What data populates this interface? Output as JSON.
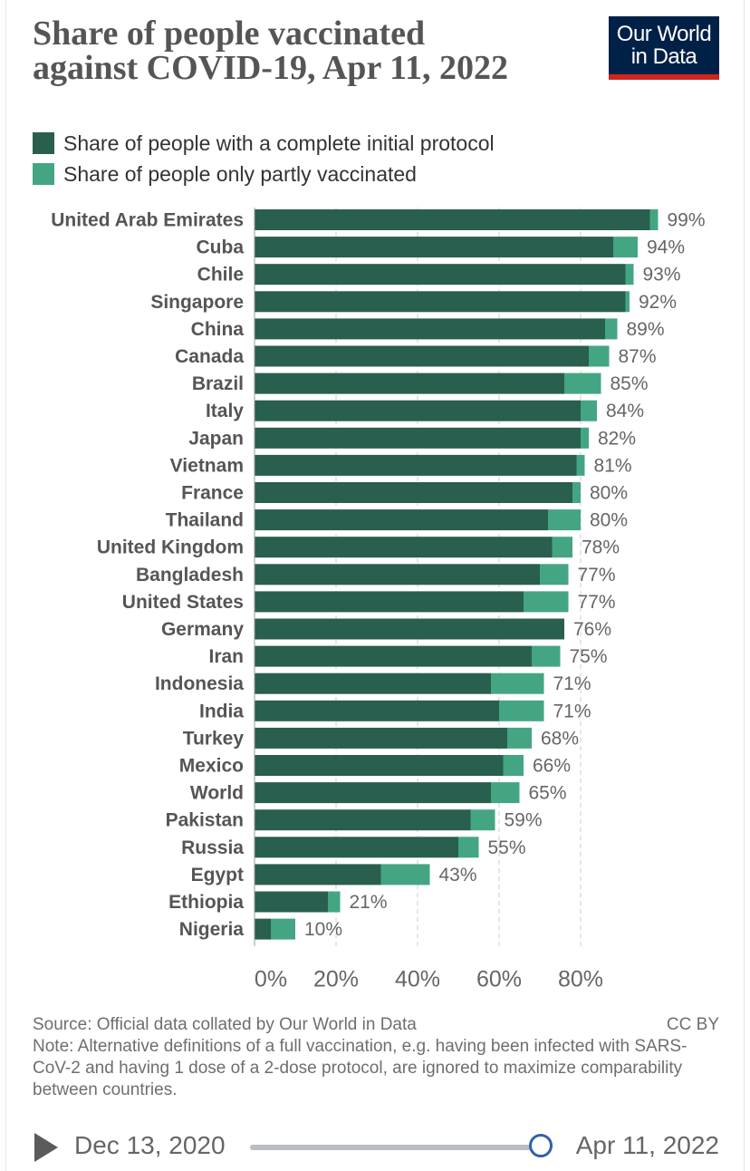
{
  "header": {
    "title_line1": "Share of people vaccinated",
    "title_line2": "against COVID-19, Apr 11, 2022",
    "logo_line1": "Our World",
    "logo_line2": "in Data"
  },
  "legend": [
    {
      "label": "Share of people with a complete initial protocol",
      "color": "#285f4e"
    },
    {
      "label": "Share of people only partly vaccinated",
      "color": "#44a583"
    }
  ],
  "chart_data": {
    "type": "bar",
    "orientation": "horizontal",
    "stacked": true,
    "title": "Share of people vaccinated against COVID-19, Apr 11, 2022",
    "categories": [
      "United Arab Emirates",
      "Cuba",
      "Chile",
      "Singapore",
      "China",
      "Canada",
      "Brazil",
      "Italy",
      "Japan",
      "Vietnam",
      "France",
      "Thailand",
      "United Kingdom",
      "Bangladesh",
      "United States",
      "Germany",
      "Iran",
      "Indonesia",
      "India",
      "Turkey",
      "Mexico",
      "World",
      "Pakistan",
      "Russia",
      "Egypt",
      "Ethiopia",
      "Nigeria"
    ],
    "series": [
      {
        "name": "Share of people with a complete initial protocol",
        "color": "#285f4e",
        "values": [
          97,
          88,
          91,
          91,
          86,
          82,
          76,
          80,
          80,
          79,
          78,
          72,
          73,
          70,
          66,
          76,
          68,
          58,
          60,
          62,
          61,
          58,
          53,
          50,
          31,
          18,
          4
        ]
      },
      {
        "name": "Share of people only partly vaccinated",
        "color": "#44a583",
        "values": [
          2,
          6,
          2,
          1,
          3,
          5,
          9,
          4,
          2,
          2,
          2,
          8,
          5,
          7,
          11,
          0,
          7,
          13,
          11,
          6,
          5,
          7,
          6,
          5,
          12,
          3,
          6
        ]
      }
    ],
    "data_labels": [
      "99%",
      "94%",
      "93%",
      "92%",
      "89%",
      "87%",
      "85%",
      "84%",
      "82%",
      "81%",
      "80%",
      "80%",
      "78%",
      "77%",
      "77%",
      "76%",
      "75%",
      "71%",
      "71%",
      "68%",
      "66%",
      "65%",
      "59%",
      "55%",
      "43%",
      "21%",
      "10%"
    ],
    "xlim": [
      0,
      100
    ],
    "x_ticks": [
      0,
      20,
      40,
      60,
      80
    ],
    "x_tick_labels": [
      "0%",
      "20%",
      "40%",
      "60%",
      "80%"
    ],
    "xlabel": "",
    "ylabel": "",
    "grid": "vertical dashed",
    "legend_position": "top-left"
  },
  "footer": {
    "source": "Source: Official data collated by Our World in Data",
    "license": "CC BY",
    "note": "Note: Alternative definitions of a full vaccination, e.g. having been infected with SARS-CoV-2 and having 1 dose of a 2-dose protocol, are ignored to maximize comparability between countries."
  },
  "timeline": {
    "start_date": "Dec 13, 2020",
    "end_date": "Apr 11, 2022"
  }
}
